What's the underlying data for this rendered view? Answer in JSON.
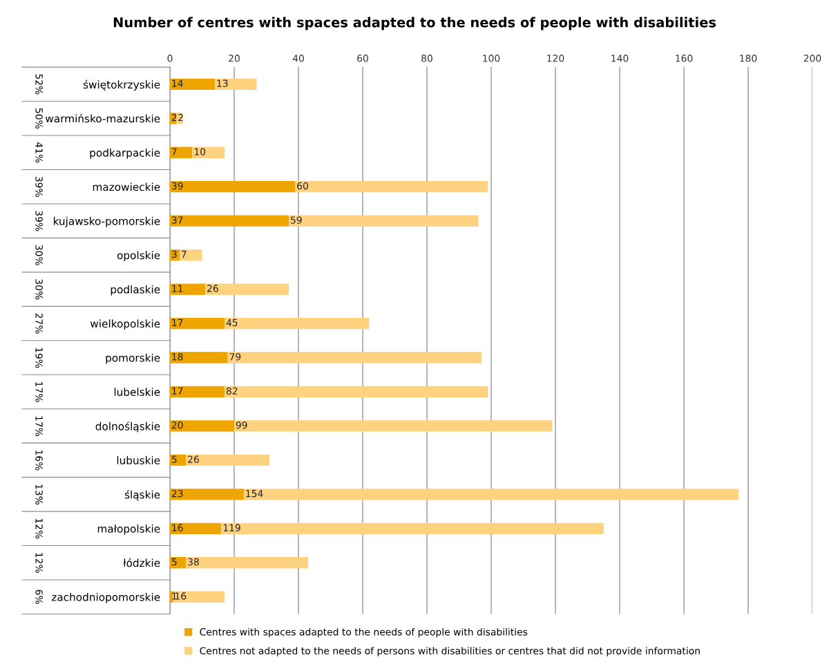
{
  "chart_data": {
    "type": "bar",
    "orientation": "horizontal",
    "stacked": true,
    "title": "Number of centres with spaces adapted to the needs of people with disabilities",
    "categories": [
      "świętokrzyskie",
      "warmińsko-mazurskie",
      "podkarpackie",
      "mazowieckie",
      "kujawsko-pomorskie",
      "opolskie",
      "podlaskie",
      "wielkopolskie",
      "pomorskie",
      "lubelskie",
      "dolnośląskie",
      "lubuskie",
      "śląskie",
      "małopolskie",
      "łódzkie",
      "zachodniopomorskie"
    ],
    "y2_categories": [
      "52%",
      "50%",
      "41%",
      "39%",
      "39%",
      "30%",
      "30%",
      "27%",
      "19%",
      "17%",
      "17%",
      "16%",
      "13%",
      "12%",
      "12%",
      "6%"
    ],
    "series": [
      {
        "name": "Centres with spaces adapted to the needs of people with disabilities",
        "color": "#eea500",
        "values": [
          14,
          2,
          7,
          39,
          37,
          3,
          11,
          17,
          18,
          17,
          20,
          5,
          23,
          16,
          5,
          1
        ]
      },
      {
        "name": "Centres not adapted to the needs of persons with disabilities or centres that did not provide information",
        "color": "#ffd27f",
        "values": [
          13,
          2,
          10,
          60,
          59,
          7,
          26,
          45,
          79,
          82,
          99,
          26,
          154,
          119,
          38,
          16
        ]
      }
    ],
    "xlim": [
      0,
      200
    ],
    "xticks": [
      0,
      20,
      40,
      60,
      80,
      100,
      120,
      140,
      160,
      180,
      200
    ],
    "grid": "x",
    "legend": "bottom",
    "data_labels": true
  }
}
